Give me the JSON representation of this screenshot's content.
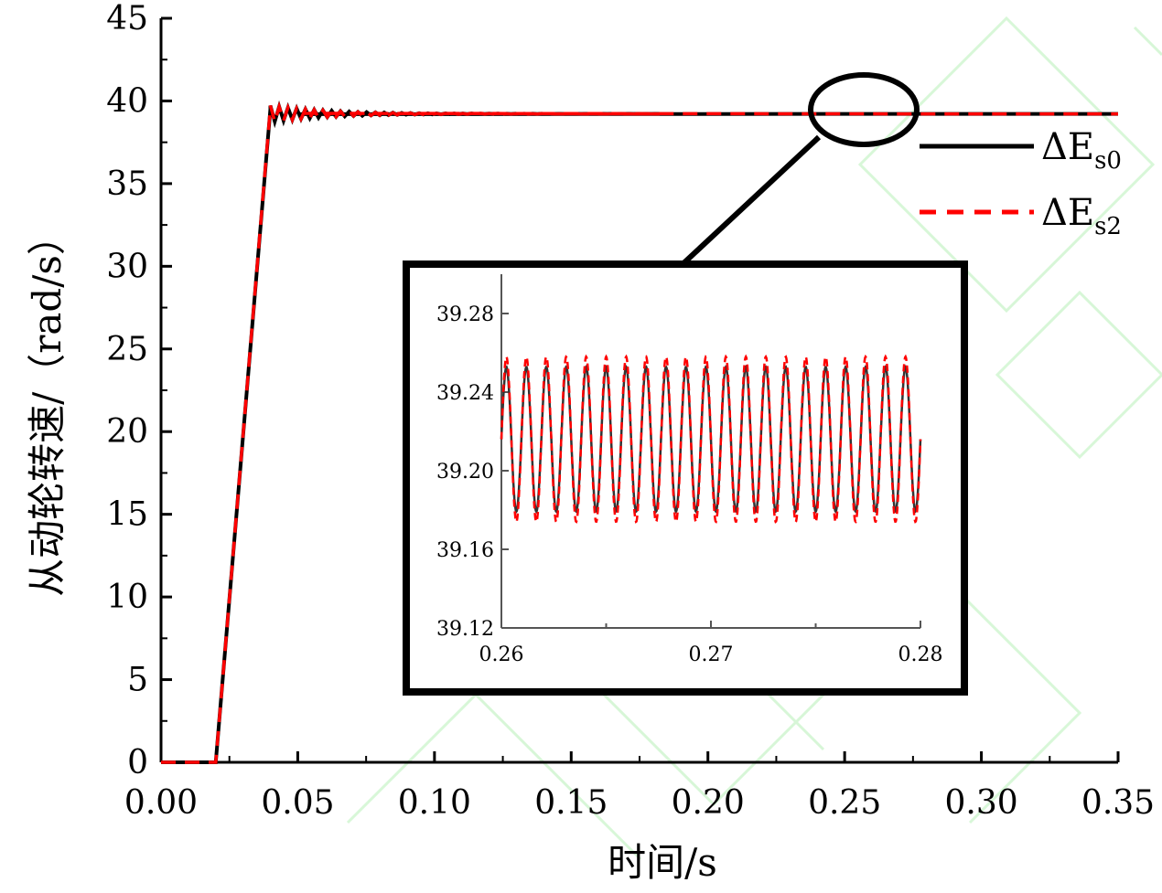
{
  "chart_data": {
    "type": "line",
    "xlabel": "时间/s",
    "ylabel": "从动轮转速/（rad/s）",
    "xlim": [
      0,
      0.35
    ],
    "ylim": [
      0,
      45
    ],
    "xticks": [
      "0.00",
      "0.05",
      "0.10",
      "0.15",
      "0.20",
      "0.25",
      "0.30",
      "0.35"
    ],
    "yticks": [
      "0",
      "5",
      "10",
      "15",
      "20",
      "25",
      "30",
      "35",
      "40",
      "45"
    ],
    "x": [
      0,
      0.02,
      0.04,
      0.05,
      0.28,
      0.35
    ],
    "series": [
      {
        "name": "ΔE",
        "subscript": "s0",
        "color": "#000000",
        "dash": "solid",
        "values": [
          0,
          0,
          39.5,
          39.2,
          39.22,
          39.22
        ]
      },
      {
        "name": "ΔE",
        "subscript": "s2",
        "color": "#ff0000",
        "dash": "dashed",
        "values": [
          0,
          0,
          39.6,
          39.25,
          39.22,
          39.22
        ]
      }
    ],
    "inset": {
      "xlim": [
        0.26,
        0.28
      ],
      "ylim": [
        39.12,
        39.3
      ],
      "xticks": [
        "0.26",
        "0.27",
        "0.28"
      ],
      "yticks": [
        "39.12",
        "39.16",
        "39.20",
        "39.24",
        "39.28"
      ],
      "oscillation": {
        "center": 39.216,
        "amplitude": 0.04,
        "cycles": 21
      }
    },
    "legend_placement": "right"
  }
}
